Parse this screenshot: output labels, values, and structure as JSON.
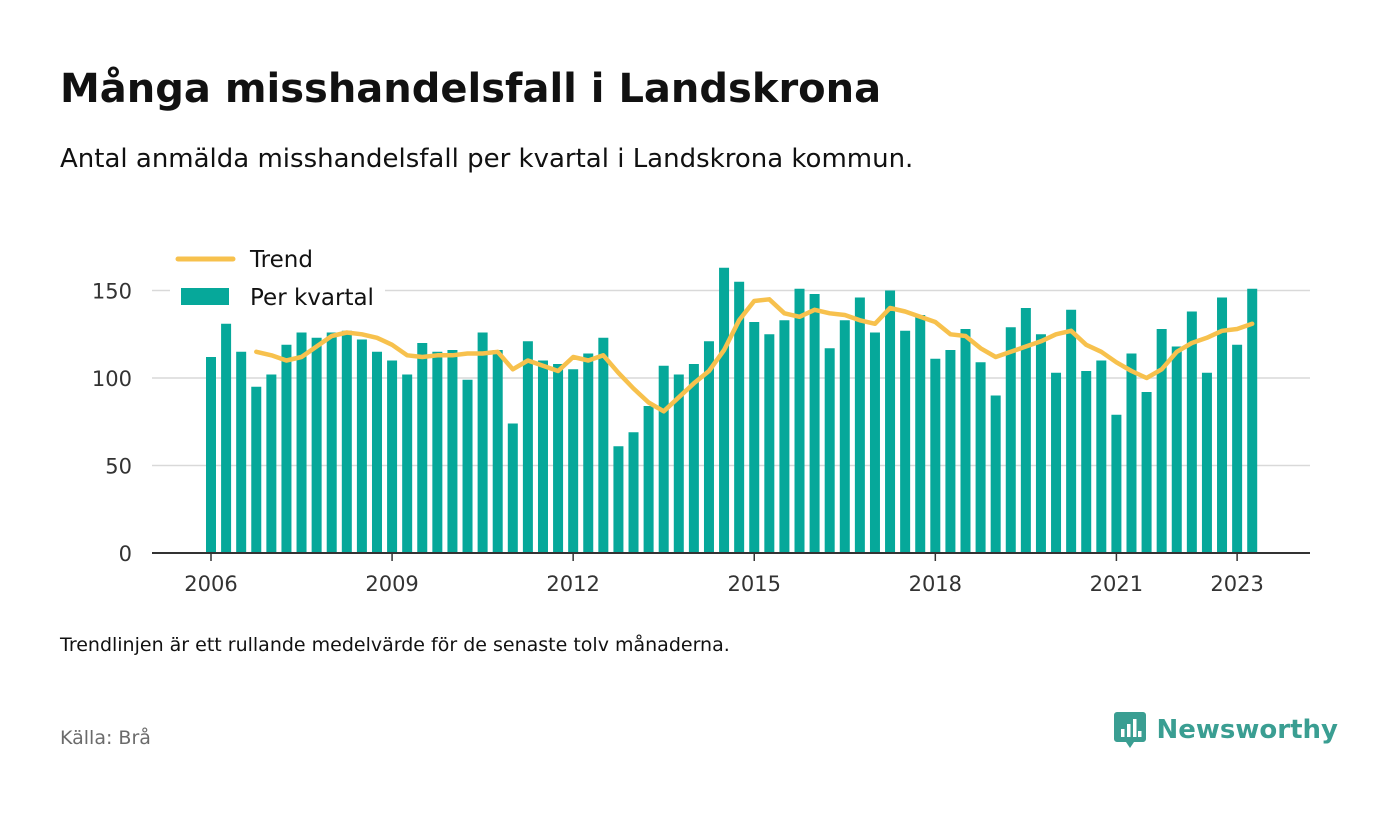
{
  "header": {
    "title": "Många misshandelsfall i Landskrona",
    "subtitle": "Antal anmälda misshandelsfall per kvartal i Landskrona kommun."
  },
  "footer": {
    "note": "Trendlinjen är ett rullande medelvärde för de senaste tolv månaderna.",
    "source": "Källa: Brå",
    "brand": "Newsworthy",
    "brand_icon": "newsworthy-logo-icon"
  },
  "colors": {
    "bar": "#06a89a",
    "trend": "#f7c14d",
    "grid": "#d9d9d9",
    "axis": "#333333",
    "brand": "#3a9e92"
  },
  "chart_data": {
    "type": "bar",
    "title": "Många misshandelsfall i Landskrona",
    "xlabel": "",
    "ylabel": "",
    "ylim": [
      0,
      165
    ],
    "yticks": [
      0,
      50,
      100,
      150
    ],
    "xticks": [
      "2006",
      "2009",
      "2012",
      "2015",
      "2018",
      "2021",
      "2023"
    ],
    "grid": true,
    "legend_position": "top-left",
    "legend": [
      "Trend",
      "Per kvartal"
    ],
    "categories": [
      "2006 Q1",
      "2006 Q2",
      "2006 Q3",
      "2006 Q4",
      "2007 Q1",
      "2007 Q2",
      "2007 Q3",
      "2007 Q4",
      "2008 Q1",
      "2008 Q2",
      "2008 Q3",
      "2008 Q4",
      "2009 Q1",
      "2009 Q2",
      "2009 Q3",
      "2009 Q4",
      "2010 Q1",
      "2010 Q2",
      "2010 Q3",
      "2010 Q4",
      "2011 Q1",
      "2011 Q2",
      "2011 Q3",
      "2011 Q4",
      "2012 Q1",
      "2012 Q2",
      "2012 Q3",
      "2012 Q4",
      "2013 Q1",
      "2013 Q2",
      "2013 Q3",
      "2013 Q4",
      "2014 Q1",
      "2014 Q2",
      "2014 Q3",
      "2014 Q4",
      "2015 Q1",
      "2015 Q2",
      "2015 Q3",
      "2015 Q4",
      "2016 Q1",
      "2016 Q2",
      "2016 Q3",
      "2016 Q4",
      "2017 Q1",
      "2017 Q2",
      "2017 Q3",
      "2017 Q4",
      "2018 Q1",
      "2018 Q2",
      "2018 Q3",
      "2018 Q4",
      "2019 Q1",
      "2019 Q2",
      "2019 Q3",
      "2019 Q4",
      "2020 Q1",
      "2020 Q2",
      "2020 Q3",
      "2020 Q4",
      "2021 Q1",
      "2021 Q2",
      "2021 Q3",
      "2021 Q4",
      "2022 Q1",
      "2022 Q2",
      "2022 Q3",
      "2022 Q4",
      "2023 Q1",
      "2023 Q2"
    ],
    "series": [
      {
        "name": "Per kvartal",
        "type": "bar",
        "values": [
          112,
          131,
          115,
          95,
          102,
          119,
          126,
          123,
          126,
          127,
          122,
          115,
          110,
          102,
          120,
          115,
          116,
          99,
          126,
          116,
          74,
          121,
          110,
          108,
          105,
          114,
          123,
          61,
          69,
          84,
          107,
          102,
          108,
          121,
          163,
          155,
          132,
          125,
          133,
          151,
          148,
          117,
          133,
          146,
          126,
          150,
          127,
          136,
          111,
          116,
          128,
          109,
          90,
          129,
          140,
          125,
          103,
          139,
          104,
          110,
          79,
          114,
          92,
          128,
          118,
          138,
          103,
          146,
          119,
          151
        ]
      },
      {
        "name": "Trend",
        "type": "line",
        "values": [
          null,
          null,
          null,
          115,
          113,
          110,
          112,
          118,
          124,
          126,
          125,
          123,
          119,
          113,
          112,
          113,
          113,
          114,
          114,
          115,
          105,
          110,
          107,
          104,
          112,
          110,
          113,
          103,
          94,
          86,
          81,
          89,
          97,
          104,
          116,
          133,
          144,
          145,
          137,
          135,
          139,
          137,
          136,
          133,
          131,
          140,
          138,
          135,
          132,
          125,
          124,
          117,
          112,
          115,
          118,
          121,
          125,
          127,
          119,
          115,
          109,
          104,
          100,
          105,
          115,
          120,
          123,
          127,
          128,
          131
        ]
      }
    ]
  }
}
